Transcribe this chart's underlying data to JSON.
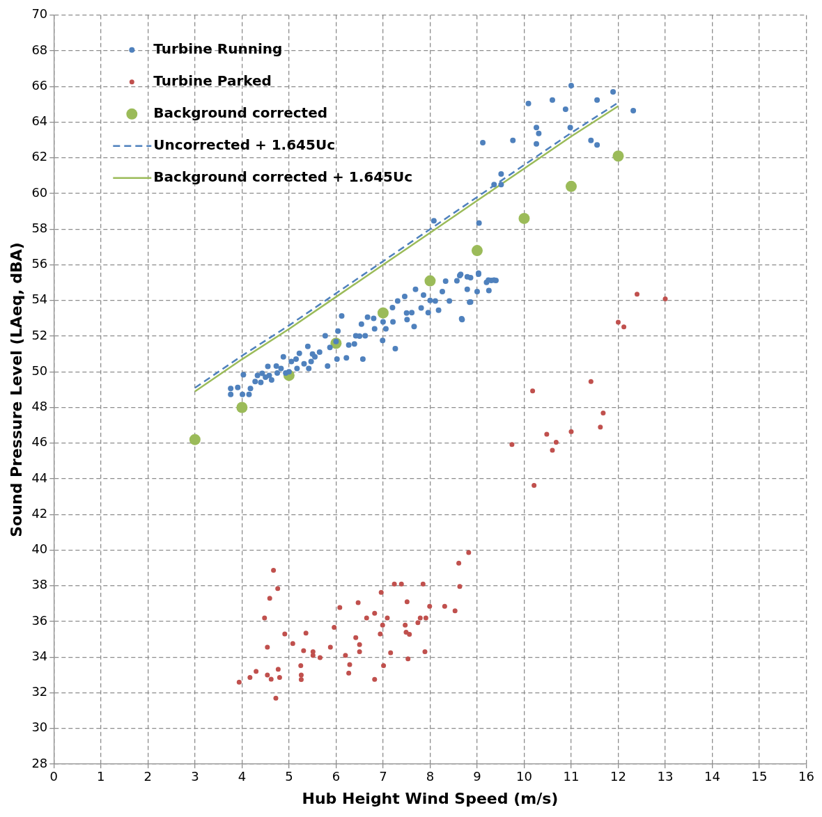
{
  "chart_data": {
    "type": "scatter",
    "xlabel": "Hub Height Wind Speed (m/s)",
    "ylabel": "Sound Pressure Level (LAeq, dBA)",
    "xlim": [
      0,
      16
    ],
    "xticks": [
      0,
      1,
      2,
      3,
      4,
      5,
      6,
      7,
      8,
      9,
      10,
      11,
      12,
      13,
      14,
      15,
      16
    ],
    "ylim": [
      28,
      70
    ],
    "yticks": [
      28,
      30,
      32,
      34,
      36,
      38,
      40,
      42,
      44,
      46,
      48,
      50,
      52,
      54,
      56,
      58,
      60,
      62,
      64,
      66,
      68,
      70
    ],
    "grid": true,
    "legend": "top left",
    "marker": "circle",
    "series": [
      {
        "name": "Turbine Running",
        "color": "#4f81bd",
        "x": [
          3.76,
          3.76,
          3.91,
          4.03,
          4.01,
          4.15,
          4.18,
          4.28,
          4.33,
          4.43,
          4.4,
          4.55,
          4.58,
          4.63,
          4.73,
          4.75,
          4.88,
          4.83,
          4.93,
          5.05,
          5.15,
          5.22,
          5.17,
          5.32,
          5.4,
          5.47,
          5.42,
          5.55,
          5.65,
          5.77,
          5.82,
          5.87,
          6.02,
          6.12,
          6.04,
          6.22,
          6.27,
          6.42,
          6.39,
          6.57,
          6.54,
          6.67,
          6.62,
          6.82,
          6.99,
          7.06,
          7.26,
          7.31,
          7.21,
          7.46,
          7.61,
          7.51,
          7.66,
          7.69,
          7.81,
          7.86,
          7.96,
          8.11,
          8.18,
          8.26,
          8.33,
          8.41,
          8.68,
          8.63,
          8.86,
          9.03,
          8.86,
          8.79,
          9.0,
          9.2,
          9.3,
          9.25,
          9.4,
          5.0,
          5.5,
          6.0,
          6.5,
          7.0,
          7.5,
          8.0,
          4.5,
          6.8,
          7.2,
          8.65,
          9.03,
          9.36,
          9.24,
          8.57,
          8.79,
          8.84,
          8.67,
          11.0,
          11.89,
          10.09,
          10.6,
          11.55,
          10.88,
          12.32,
          10.98,
          10.26,
          10.31,
          10.26,
          9.76,
          9.12,
          11.42,
          11.55,
          9.51,
          9.36,
          9.51,
          8.08,
          9.04
        ],
        "values": [
          49.06,
          48.73,
          49.12,
          49.84,
          48.73,
          48.73,
          49.06,
          49.45,
          49.8,
          49.91,
          49.41,
          50.3,
          49.8,
          49.54,
          50.32,
          49.93,
          50.84,
          50.19,
          49.93,
          50.58,
          50.71,
          51.04,
          50.19,
          50.45,
          51.43,
          50.58,
          50.19,
          50.84,
          51.1,
          52.02,
          50.32,
          51.37,
          50.71,
          53.13,
          52.28,
          50.78,
          51.5,
          52.02,
          51.56,
          50.71,
          52.67,
          53.06,
          52.02,
          52.41,
          51.76,
          52.41,
          51.3,
          53.97,
          52.8,
          54.23,
          53.32,
          52.93,
          52.54,
          54.63,
          53.58,
          54.3,
          53.32,
          53.97,
          53.45,
          54.5,
          55.08,
          53.97,
          52.93,
          55.4,
          55.28,
          55.47,
          53.91,
          54.63,
          54.5,
          55.02,
          55.12,
          54.56,
          55.12,
          50.0,
          51.0,
          51.7,
          52.0,
          52.8,
          53.3,
          54.0,
          49.7,
          53.0,
          53.6,
          55.46,
          55.53,
          55.14,
          55.14,
          55.1,
          55.33,
          53.9,
          52.98,
          66.05,
          65.7,
          65.05,
          65.24,
          65.24,
          64.72,
          64.65,
          63.7,
          63.7,
          63.37,
          62.78,
          62.98,
          62.85,
          62.98,
          62.72,
          61.09,
          60.5,
          60.5,
          58.47,
          58.34
        ]
      },
      {
        "name": "Turbine Parked",
        "color": "#c0504d",
        "x": [
          3.94,
          4.17,
          4.3,
          4.48,
          4.54,
          4.59,
          4.67,
          4.76,
          4.54,
          4.62,
          4.77,
          4.8,
          4.72,
          4.91,
          5.08,
          5.36,
          5.31,
          5.51,
          5.51,
          5.66,
          5.25,
          5.26,
          5.26,
          5.88,
          5.96,
          6.08,
          6.2,
          6.29,
          6.27,
          6.42,
          6.5,
          6.5,
          6.47,
          6.65,
          6.82,
          6.82,
          6.96,
          6.94,
          6.99,
          7.09,
          7.01,
          7.16,
          7.24,
          7.39,
          7.51,
          7.47,
          7.49,
          7.56,
          7.53,
          7.74,
          7.79,
          7.91,
          7.85,
          7.89,
          7.99,
          8.31,
          8.53,
          8.63,
          8.61,
          8.82,
          12.4,
          13.0,
          12.0,
          12.12,
          11.42,
          10.18,
          11.68,
          11.62,
          11.0,
          10.48,
          10.68,
          10.6,
          9.74,
          10.21
        ],
        "values": [
          32.6,
          32.86,
          33.2,
          36.2,
          34.56,
          37.3,
          38.87,
          37.84,
          33.0,
          32.76,
          33.32,
          32.86,
          31.7,
          35.3,
          34.76,
          35.35,
          34.36,
          34.3,
          34.1,
          33.97,
          33.52,
          33.0,
          32.74,
          34.56,
          35.67,
          36.78,
          34.1,
          33.58,
          33.1,
          35.09,
          34.7,
          34.3,
          37.05,
          36.2,
          36.46,
          32.75,
          37.63,
          35.3,
          35.8,
          36.2,
          33.52,
          34.24,
          38.1,
          38.1,
          37.1,
          35.8,
          35.4,
          35.28,
          33.9,
          35.93,
          36.2,
          36.2,
          38.1,
          34.3,
          36.85,
          36.85,
          36.6,
          37.96,
          39.27,
          39.86,
          54.35,
          54.09,
          52.78,
          52.52,
          49.45,
          48.93,
          47.69,
          46.9,
          46.64,
          46.5,
          46.05,
          45.6,
          45.92,
          43.63
        ]
      },
      {
        "name": "Background corrected",
        "color": "#9bbb59",
        "x": [
          3,
          4,
          5,
          6,
          7,
          8,
          9,
          10,
          11,
          12
        ],
        "values": [
          46.2,
          48.0,
          49.8,
          51.6,
          53.3,
          55.1,
          56.8,
          58.6,
          60.4,
          62.1
        ]
      },
      {
        "name": "Uncorrected + 1.645Uc",
        "type": "line",
        "color": "#4f81bd",
        "line_style": "dashed",
        "marker": "none",
        "x": [
          3,
          4,
          5,
          6,
          7,
          8,
          9,
          10,
          11,
          12
        ],
        "values": [
          49.1,
          50.9,
          52.6,
          54.4,
          56.2,
          58.0,
          59.8,
          61.6,
          63.4,
          65.1
        ]
      },
      {
        "name": "Background corrected + 1.645Uc",
        "type": "line",
        "color": "#9bbb59",
        "line_style": "solid",
        "marker": "none",
        "x": [
          3,
          4,
          5,
          6,
          7,
          8,
          9,
          10,
          11,
          12
        ],
        "values": [
          48.9,
          50.7,
          52.4,
          54.2,
          56.0,
          57.8,
          59.6,
          61.4,
          63.2,
          64.9
        ]
      }
    ]
  }
}
